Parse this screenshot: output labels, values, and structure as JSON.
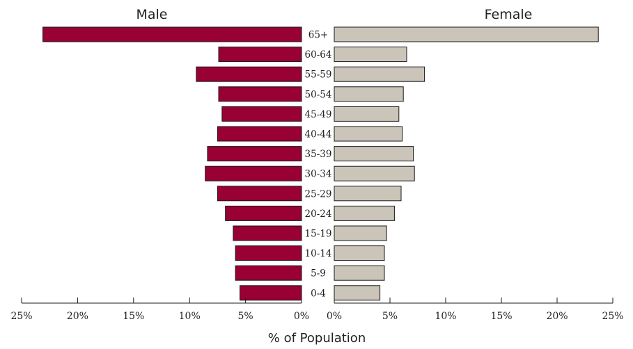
{
  "chart_data": {
    "type": "bar",
    "orientation": "horizontal",
    "layout": "population-pyramid",
    "categories": [
      "65+",
      "60-64",
      "55-59",
      "50-54",
      "45-49",
      "40-44",
      "35-39",
      "30-34",
      "25-29",
      "20-24",
      "15-19",
      "10-14",
      "5-9",
      "0-4"
    ],
    "series": [
      {
        "name": "Male",
        "color": "#990033",
        "values": [
          23.1,
          7.4,
          9.4,
          7.4,
          7.1,
          7.5,
          8.4,
          8.6,
          7.5,
          6.8,
          6.1,
          5.9,
          5.9,
          5.5
        ]
      },
      {
        "name": "Female",
        "color": "#cbc4b8",
        "values": [
          23.7,
          6.5,
          8.1,
          6.2,
          5.8,
          6.1,
          7.1,
          7.2,
          6.0,
          5.4,
          4.7,
          4.5,
          4.5,
          4.1
        ]
      }
    ],
    "xlabel": "% of Population",
    "xlim": [
      0,
      25
    ],
    "x_ticks": [
      {
        "value": 25,
        "label": "25%"
      },
      {
        "value": 20,
        "label": "20%"
      },
      {
        "value": 15,
        "label": "15%"
      },
      {
        "value": 10,
        "label": "10%"
      },
      {
        "value": 5,
        "label": "5%"
      },
      {
        "value": 0,
        "label": "0%"
      }
    ],
    "grid": false,
    "legend": "none"
  }
}
